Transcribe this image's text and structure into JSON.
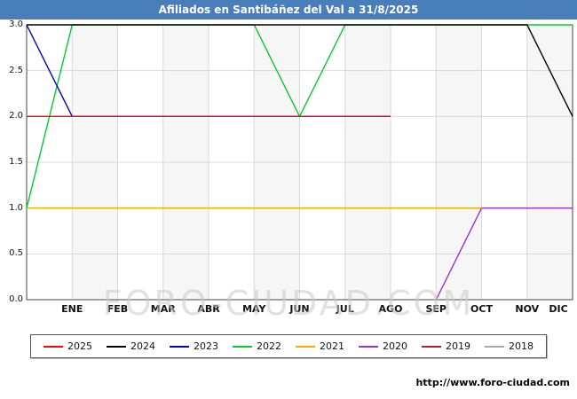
{
  "header": {
    "title": "Afiliados en Santibáñez del Val a 31/8/2025",
    "background_color": "#4a7ebb"
  },
  "watermark": "FORO-CIUDAD.COM",
  "footer": {
    "url_label": "http://www.foro-ciudad.com"
  },
  "chart_data": {
    "type": "line",
    "title": "Afiliados en Santibáñez del Val a 31/8/2025",
    "xlabel": "",
    "ylabel": "",
    "xlim": [
      0,
      12
    ],
    "ylim": [
      0,
      3
    ],
    "grid": true,
    "legend_position": "bottom",
    "x_tick_labels": [
      "ENE",
      "FEB",
      "MAR",
      "ABR",
      "MAY",
      "JUN",
      "JUL",
      "AGO",
      "SEP",
      "OCT",
      "NOV",
      "DIC"
    ],
    "y_ticks": [
      0,
      0.5,
      1,
      1.5,
      2,
      2.5,
      3
    ],
    "y_tick_labels": [
      "0.0",
      "0.5",
      "1.0",
      "1.5",
      "2.0",
      "2.5",
      "3.0"
    ],
    "series": [
      {
        "name": "2025",
        "color": "#ff0000",
        "points": [
          [
            0,
            2
          ],
          [
            8,
            2
          ]
        ]
      },
      {
        "name": "2024",
        "color": "#000000",
        "points": [
          [
            0,
            3
          ],
          [
            11,
            3
          ],
          [
            12,
            2
          ]
        ]
      },
      {
        "name": "2023",
        "color": "#0000cc",
        "points": [
          [
            0,
            3
          ],
          [
            1,
            2
          ],
          [
            8,
            2
          ]
        ]
      },
      {
        "name": "2022",
        "color": "#00cc33",
        "points": [
          [
            0,
            1
          ],
          [
            1,
            3
          ],
          [
            5,
            3
          ],
          [
            6,
            2
          ],
          [
            7,
            3
          ],
          [
            12,
            3
          ]
        ]
      },
      {
        "name": "2021",
        "color": "#ffaa00",
        "points": [
          [
            0,
            1
          ],
          [
            10,
            1
          ]
        ]
      },
      {
        "name": "2020",
        "color": "#9933cc",
        "points": [
          [
            9,
            0
          ],
          [
            10,
            1
          ],
          [
            12,
            1
          ]
        ]
      },
      {
        "name": "2019",
        "color": "#b22222",
        "points": []
      },
      {
        "name": "2018",
        "color": "#a8a8a8",
        "points": []
      }
    ]
  }
}
